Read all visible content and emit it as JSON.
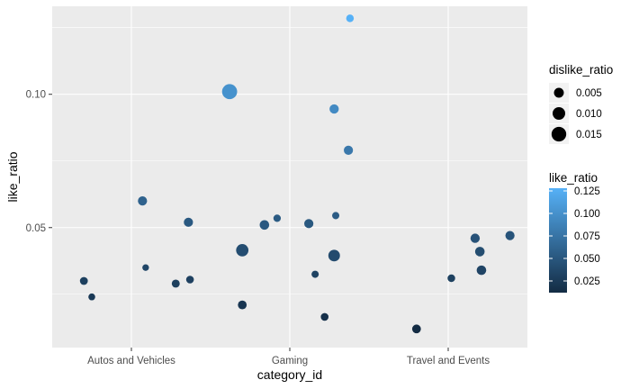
{
  "chart_data": {
    "type": "scatter",
    "xlabel": "category_id",
    "ylabel": "like_ratio",
    "categories": [
      "Autos and Vehicles",
      "Gaming",
      "Travel and Events"
    ],
    "ylim": [
      0.005,
      0.133
    ],
    "yticks": [
      0.05,
      0.1
    ],
    "ytick_labels": [
      "0.05",
      "0.10"
    ],
    "grid": true,
    "panel_background": "#ebebeb",
    "grid_color": "#ffffff",
    "color_low": "#132b43",
    "color_high": "#56b1f7",
    "size_legend": {
      "title": "dislike_ratio",
      "values": [
        0.005,
        0.01,
        0.015
      ],
      "labels": [
        "0.005",
        "0.010",
        "0.015"
      ]
    },
    "color_legend": {
      "title": "like_ratio",
      "range": [
        0.012,
        0.128
      ],
      "values": [
        0.025,
        0.05,
        0.075,
        0.1,
        0.125
      ],
      "labels": [
        "0.025",
        "0.050",
        "0.075",
        "0.100",
        "0.125"
      ]
    },
    "points": [
      {
        "x": 0.7,
        "like_ratio": 0.03,
        "dislike_ratio": 0.0025
      },
      {
        "x": 0.75,
        "like_ratio": 0.024,
        "dislike_ratio": 0.0015
      },
      {
        "x": 1.07,
        "like_ratio": 0.06,
        "dislike_ratio": 0.004
      },
      {
        "x": 1.09,
        "like_ratio": 0.035,
        "dislike_ratio": 0.0013
      },
      {
        "x": 1.28,
        "like_ratio": 0.029,
        "dislike_ratio": 0.0026
      },
      {
        "x": 1.36,
        "like_ratio": 0.052,
        "dislike_ratio": 0.004
      },
      {
        "x": 1.37,
        "like_ratio": 0.0305,
        "dislike_ratio": 0.0023
      },
      {
        "x": 1.62,
        "like_ratio": 0.101,
        "dislike_ratio": 0.016
      },
      {
        "x": 1.7,
        "like_ratio": 0.0415,
        "dislike_ratio": 0.0095
      },
      {
        "x": 1.7,
        "like_ratio": 0.021,
        "dislike_ratio": 0.0035
      },
      {
        "x": 1.84,
        "like_ratio": 0.051,
        "dislike_ratio": 0.0045
      },
      {
        "x": 1.92,
        "like_ratio": 0.0535,
        "dislike_ratio": 0.002
      },
      {
        "x": 2.12,
        "like_ratio": 0.0515,
        "dislike_ratio": 0.004
      },
      {
        "x": 2.16,
        "like_ratio": 0.0325,
        "dislike_ratio": 0.0018
      },
      {
        "x": 2.22,
        "like_ratio": 0.0165,
        "dislike_ratio": 0.0023
      },
      {
        "x": 2.28,
        "like_ratio": 0.0395,
        "dislike_ratio": 0.008
      },
      {
        "x": 2.28,
        "like_ratio": 0.0945,
        "dislike_ratio": 0.0042
      },
      {
        "x": 2.29,
        "like_ratio": 0.0545,
        "dislike_ratio": 0.0018
      },
      {
        "x": 2.37,
        "like_ratio": 0.079,
        "dislike_ratio": 0.004
      },
      {
        "x": 2.38,
        "like_ratio": 0.1285,
        "dislike_ratio": 0.0022
      },
      {
        "x": 2.8,
        "like_ratio": 0.012,
        "dislike_ratio": 0.0035
      },
      {
        "x": 3.02,
        "like_ratio": 0.031,
        "dislike_ratio": 0.0022
      },
      {
        "x": 3.17,
        "like_ratio": 0.046,
        "dislike_ratio": 0.0042
      },
      {
        "x": 3.2,
        "like_ratio": 0.041,
        "dislike_ratio": 0.0045
      },
      {
        "x": 3.21,
        "like_ratio": 0.034,
        "dislike_ratio": 0.0045
      },
      {
        "x": 3.39,
        "like_ratio": 0.047,
        "dislike_ratio": 0.004
      }
    ]
  }
}
